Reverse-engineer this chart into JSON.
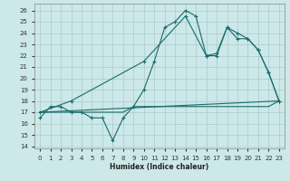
{
  "xlabel": "Humidex (Indice chaleur)",
  "bg_color": "#cce8e8",
  "grid_color": "#b0d0d0",
  "line_color": "#1a6b6b",
  "xlim": [
    -0.5,
    23.5
  ],
  "ylim": [
    13.8,
    26.6
  ],
  "yticks": [
    14,
    15,
    16,
    17,
    18,
    19,
    20,
    21,
    22,
    23,
    24,
    25,
    26
  ],
  "xticks": [
    0,
    1,
    2,
    3,
    4,
    5,
    6,
    7,
    8,
    9,
    10,
    11,
    12,
    13,
    14,
    15,
    16,
    17,
    18,
    19,
    20,
    21,
    22,
    23
  ],
  "line1_x": [
    0,
    1,
    2,
    3,
    4,
    5,
    6,
    7,
    8,
    9,
    10,
    11,
    12,
    13,
    14,
    15,
    16,
    17,
    18,
    19,
    20,
    21,
    22,
    23
  ],
  "line1_y": [
    16.5,
    17.5,
    17.5,
    17.0,
    17.0,
    16.5,
    16.5,
    14.5,
    16.5,
    17.5,
    19.0,
    21.5,
    24.5,
    25.0,
    26.0,
    25.5,
    22.0,
    22.0,
    24.5,
    24.0,
    23.5,
    22.5,
    20.5,
    18.0
  ],
  "line2_x": [
    0,
    23
  ],
  "line2_y": [
    17.0,
    18.0
  ],
  "line3_x": [
    0,
    1,
    2,
    3,
    4,
    5,
    6,
    7,
    8,
    9,
    10,
    11,
    12,
    13,
    14,
    15,
    16,
    17,
    18,
    19,
    20,
    21,
    22,
    23
  ],
  "line3_y": [
    17.0,
    17.0,
    17.0,
    17.0,
    17.0,
    17.0,
    17.0,
    17.0,
    17.0,
    17.5,
    17.5,
    17.5,
    17.5,
    17.5,
    17.5,
    17.5,
    17.5,
    17.5,
    17.5,
    17.5,
    17.5,
    17.5,
    17.5,
    18.0
  ],
  "line4_x": [
    0,
    3,
    10,
    14,
    16,
    17,
    18,
    19,
    20,
    21,
    22,
    23
  ],
  "line4_y": [
    17.0,
    18.0,
    21.5,
    25.5,
    22.0,
    22.2,
    24.5,
    23.5,
    23.5,
    22.5,
    20.5,
    18.0
  ]
}
